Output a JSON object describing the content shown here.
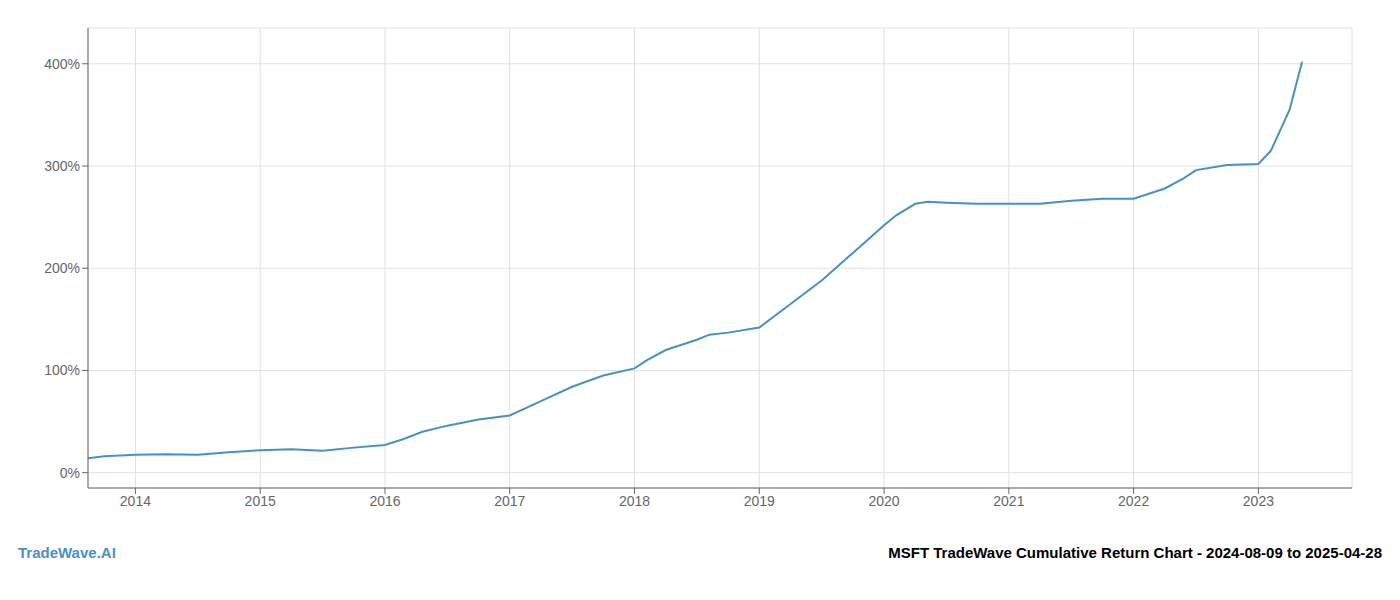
{
  "chart_data": {
    "type": "line",
    "title": "MSFT TradeWave Cumulative Return Chart - 2024-08-09 to 2025-04-28",
    "annotations": [
      "TradeWave.AI"
    ],
    "color": "#4a90c4",
    "grid": true,
    "xlim": [
      2013.62,
      2023.75
    ],
    "ylim": [
      -0.15,
      4.35
    ],
    "xticks": [
      2014,
      2015,
      2016,
      2017,
      2018,
      2019,
      2020,
      2021,
      2022,
      2023
    ],
    "yticks": [
      {
        "value": 0.0,
        "label": "0%"
      },
      {
        "value": 1.0,
        "label": "100%"
      },
      {
        "value": 2.0,
        "label": "200%"
      },
      {
        "value": 3.0,
        "label": "300%"
      },
      {
        "value": 4.0,
        "label": "400%"
      }
    ],
    "x": [
      2013.62,
      2013.75,
      2014.0,
      2014.25,
      2014.5,
      2014.75,
      2015.0,
      2015.25,
      2015.5,
      2015.75,
      2016.0,
      2016.15,
      2016.3,
      2016.5,
      2016.75,
      2017.0,
      2017.25,
      2017.5,
      2017.75,
      2018.0,
      2018.1,
      2018.25,
      2018.5,
      2018.6,
      2018.75,
      2019.0,
      2019.25,
      2019.5,
      2019.75,
      2020.0,
      2020.1,
      2020.25,
      2020.35,
      2020.5,
      2020.75,
      2021.0,
      2021.25,
      2021.5,
      2021.75,
      2022.0,
      2022.25,
      2022.4,
      2022.5,
      2022.75,
      2023.0,
      2023.1,
      2023.25,
      2023.35
    ],
    "values": [
      0.14,
      0.16,
      0.175,
      0.18,
      0.175,
      0.2,
      0.22,
      0.23,
      0.215,
      0.245,
      0.27,
      0.33,
      0.4,
      0.46,
      0.52,
      0.56,
      0.7,
      0.84,
      0.95,
      1.02,
      1.1,
      1.2,
      1.3,
      1.35,
      1.37,
      1.42,
      1.65,
      1.88,
      2.15,
      2.42,
      2.52,
      2.63,
      2.65,
      2.64,
      2.63,
      2.63,
      2.63,
      2.66,
      2.68,
      2.68,
      2.78,
      2.88,
      2.96,
      3.01,
      3.02,
      3.15,
      3.55,
      4.02
    ]
  }
}
